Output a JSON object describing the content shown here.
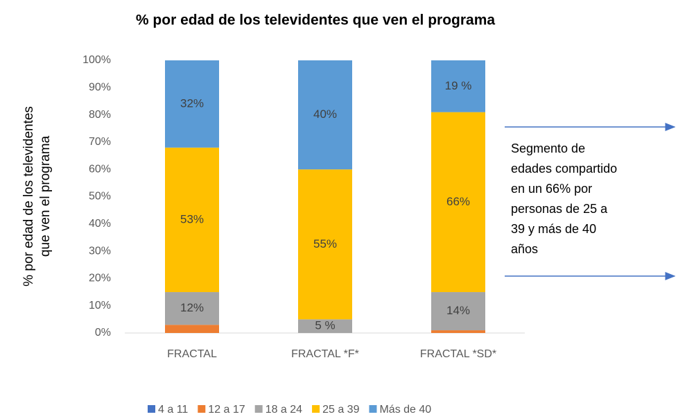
{
  "chart_data": {
    "type": "stacked_bar",
    "title": "% por edad de los televidentes que ven el programa",
    "ylabel": [
      "% por edad de los televidentes",
      "que ven el programa"
    ],
    "categories": [
      "FRACTAL",
      "FRACTAL *F*",
      "FRACTAL *SD*"
    ],
    "series": [
      {
        "name": "4 a 11",
        "color": "#4472c4",
        "values": [
          0,
          0,
          0
        ],
        "value_labels": [
          null,
          null,
          null
        ]
      },
      {
        "name": "12 a 17",
        "color": "#ed7d31",
        "values": [
          3,
          0,
          1
        ],
        "value_labels": [
          null,
          null,
          null
        ]
      },
      {
        "name": "18 a 24",
        "color": "#a5a5a5",
        "values": [
          12,
          5,
          14
        ],
        "value_labels": [
          "12%",
          "5 %",
          "14%"
        ]
      },
      {
        "name": "25 a 39",
        "color": "#ffc000",
        "values": [
          53,
          55,
          66
        ],
        "value_labels": [
          "53%",
          "55%",
          "66%"
        ]
      },
      {
        "name": "Más de 40",
        "color": "#5b9bd5",
        "values": [
          32,
          40,
          19
        ],
        "value_labels": [
          "32%",
          "40%",
          "19 %"
        ]
      }
    ],
    "ylim": [
      0,
      100
    ],
    "yticks": [
      {
        "value": 0,
        "label": "0%"
      },
      {
        "value": 10,
        "label": "10%"
      },
      {
        "value": 20,
        "label": "20%"
      },
      {
        "value": 30,
        "label": "30%"
      },
      {
        "value": 40,
        "label": "40%"
      },
      {
        "value": 50,
        "label": "50%"
      },
      {
        "value": 60,
        "label": "60%"
      },
      {
        "value": 70,
        "label": "70%"
      },
      {
        "value": 80,
        "label": "80%"
      },
      {
        "value": 90,
        "label": "90%"
      },
      {
        "value": 100,
        "label": "100%"
      }
    ],
    "annotation": [
      "Segmento de",
      "edades compartido",
      "en un 66% por",
      "personas de 25 a",
      "39 y más de 40",
      "años"
    ],
    "legend": "bottom"
  }
}
